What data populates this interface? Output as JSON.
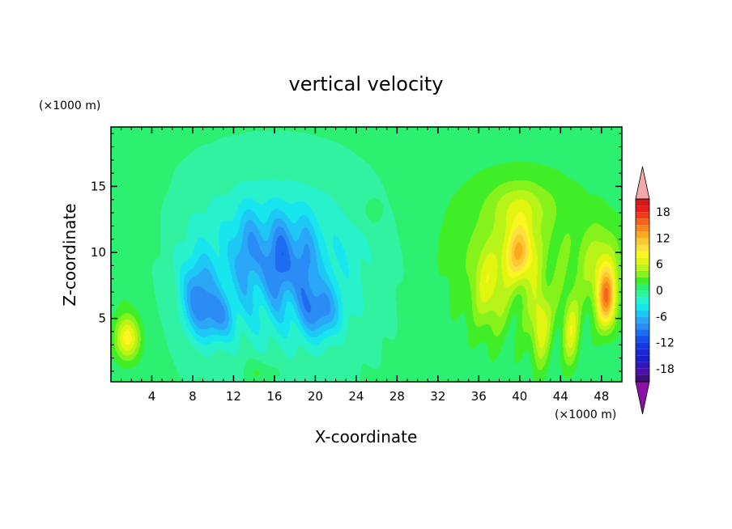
{
  "chart_data": {
    "type": "heatmap",
    "title": "vertical velocity",
    "xlabel": "X-coordinate",
    "ylabel": "Z-coordinate",
    "x_unit": "(×1000 m)",
    "y_unit": "(×1000 m)",
    "xlim": [
      0,
      50
    ],
    "ylim": [
      0.2,
      19.5
    ],
    "x_ticks": [
      "4",
      "8",
      "12",
      "16",
      "20",
      "24",
      "28",
      "32",
      "36",
      "40",
      "44",
      "48"
    ],
    "x_tick_values": [
      4,
      8,
      12,
      16,
      20,
      24,
      28,
      32,
      36,
      40,
      44,
      48
    ],
    "y_ticks": [
      "5",
      "10",
      "15"
    ],
    "y_tick_values": [
      5,
      10,
      15
    ],
    "colorbar": {
      "levels": [
        -21,
        -19.5,
        -18,
        -16.5,
        -15,
        -13.5,
        -12,
        -10.5,
        -9,
        -7.5,
        -6,
        -4.5,
        -3,
        -1.5,
        0,
        1.5,
        3,
        4.5,
        6,
        7.5,
        9,
        10.5,
        12,
        13.5,
        15,
        16.5,
        18,
        19.5,
        21
      ],
      "labels": [
        "18",
        "12",
        "6",
        "0",
        "-6",
        "-12",
        "-18"
      ],
      "label_values": [
        18,
        12,
        6,
        0,
        -6,
        -12,
        -18
      ],
      "extend": "both"
    },
    "features": [
      {
        "x": 8.5,
        "z": 6.5,
        "w": -13
      },
      {
        "x": 10.5,
        "z": 5.5,
        "w": -11
      },
      {
        "x": 16.5,
        "z": 9.5,
        "w": -11
      },
      {
        "x": 20.5,
        "z": 5.0,
        "w": -12
      },
      {
        "x": 13.5,
        "z": 10.0,
        "w": -7
      },
      {
        "x": 40.0,
        "z": 10.0,
        "w": 12
      },
      {
        "x": 48.5,
        "z": 6.5,
        "w": 14
      },
      {
        "x": 1.5,
        "z": 3.5,
        "w": 9
      },
      {
        "x": 37.0,
        "z": 7.0,
        "w": 7
      },
      {
        "x": 42.0,
        "z": 5.0,
        "w": 9
      },
      {
        "x": 45.0,
        "z": 4.0,
        "w": 7
      },
      {
        "x": 14.5,
        "z": 1.0,
        "w": 2
      }
    ]
  }
}
